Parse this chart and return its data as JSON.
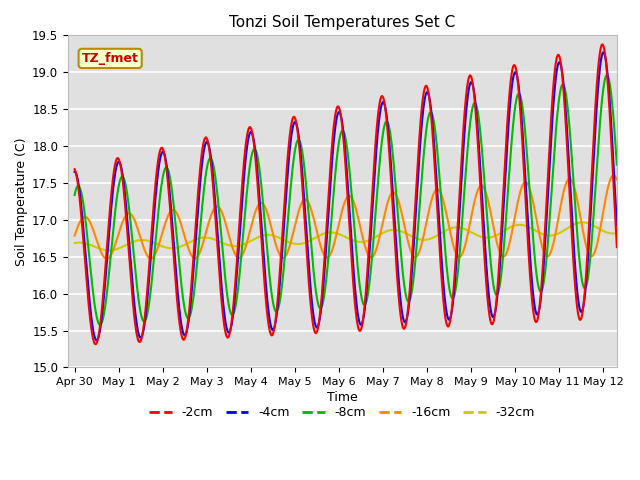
{
  "title": "Tonzi Soil Temperatures Set C",
  "xlabel": "Time",
  "ylabel": "Soil Temperature (C)",
  "ylim": [
    15.0,
    19.5
  ],
  "series": {
    "-2cm": {
      "color": "#ff0000",
      "linewidth": 1.5
    },
    "-4cm": {
      "color": "#0000ff",
      "linewidth": 1.5
    },
    "-8cm": {
      "color": "#00bb00",
      "linewidth": 1.5
    },
    "-16cm": {
      "color": "#ff8800",
      "linewidth": 1.5
    },
    "-32cm": {
      "color": "#cccc00",
      "linewidth": 1.5
    }
  },
  "annotation_text": "TZ_fmet",
  "annotation_color": "#cc0000",
  "annotation_bg": "#ffffcc",
  "annotation_border": "#bb8800",
  "bg_color": "#e0e0e0",
  "grid_color": "#ffffff",
  "tick_labels": [
    "Apr 30",
    "May 1",
    "May 2",
    "May 3",
    "May 4",
    "May 5",
    "May 6",
    "May 7",
    "May 8",
    "May 9",
    "May 10",
    "May 11",
    "May 12"
  ],
  "tick_positions": [
    0,
    1,
    2,
    3,
    4,
    5,
    6,
    7,
    8,
    9,
    10,
    11,
    12
  ]
}
